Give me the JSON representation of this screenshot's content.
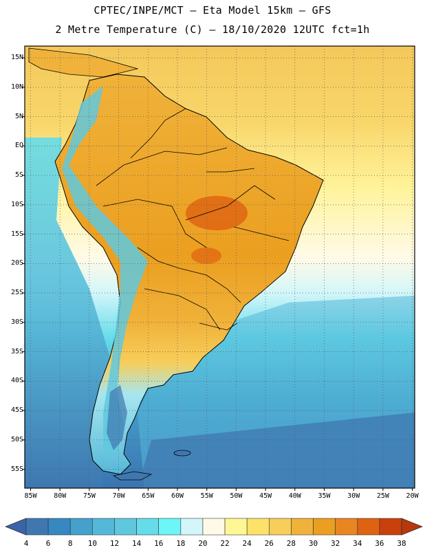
{
  "header": {
    "line1": "CPTEC/INPE/MCT –   Eta Model 15km – GFS",
    "line2": "2 Metre Temperature (C) – 18/10/2020 12UTC fct=1h"
  },
  "map": {
    "lat_ticks": [
      {
        "deg": 15,
        "label": "15N"
      },
      {
        "deg": 10,
        "label": "10N"
      },
      {
        "deg": 5,
        "label": "5N"
      },
      {
        "deg": 0,
        "label": "EQ"
      },
      {
        "deg": -5,
        "label": "5S"
      },
      {
        "deg": -10,
        "label": "10S"
      },
      {
        "deg": -15,
        "label": "15S"
      },
      {
        "deg": -20,
        "label": "20S"
      },
      {
        "deg": -25,
        "label": "25S"
      },
      {
        "deg": -30,
        "label": "30S"
      },
      {
        "deg": -35,
        "label": "35S"
      },
      {
        "deg": -40,
        "label": "40S"
      },
      {
        "deg": -45,
        "label": "45S"
      },
      {
        "deg": -50,
        "label": "50S"
      },
      {
        "deg": -55,
        "label": "55S"
      }
    ],
    "lon_ticks": [
      {
        "deg": -85,
        "label": "85W"
      },
      {
        "deg": -80,
        "label": "80W"
      },
      {
        "deg": -75,
        "label": "75W"
      },
      {
        "deg": -70,
        "label": "70W"
      },
      {
        "deg": -65,
        "label": "65W"
      },
      {
        "deg": -60,
        "label": "60W"
      },
      {
        "deg": -55,
        "label": "55W"
      },
      {
        "deg": -50,
        "label": "50W"
      },
      {
        "deg": -45,
        "label": "45W"
      },
      {
        "deg": -40,
        "label": "40W"
      },
      {
        "deg": -35,
        "label": "35W"
      },
      {
        "deg": -30,
        "label": "30W"
      },
      {
        "deg": -25,
        "label": "25W"
      },
      {
        "deg": -20,
        "label": "20W"
      }
    ]
  },
  "colorbar": {
    "labels": [
      "4",
      "6",
      "8",
      "10",
      "12",
      "14",
      "16",
      "18",
      "20",
      "22",
      "24",
      "26",
      "28",
      "30",
      "32",
      "34",
      "36",
      "38"
    ],
    "colors": [
      "#3f78b0",
      "#3588c0",
      "#45a0cc",
      "#56b8d8",
      "#60c8de",
      "#66dcea",
      "#6cf6f6",
      "#d2f6fa",
      "#fffae8",
      "#fff696",
      "#fde26a",
      "#f7ce5a",
      "#f0b23a",
      "#eb9f20",
      "#e88622",
      "#df6212",
      "#c8400c"
    ],
    "low_cap": "#3b64a8",
    "high_cap": "#b8380c"
  }
}
